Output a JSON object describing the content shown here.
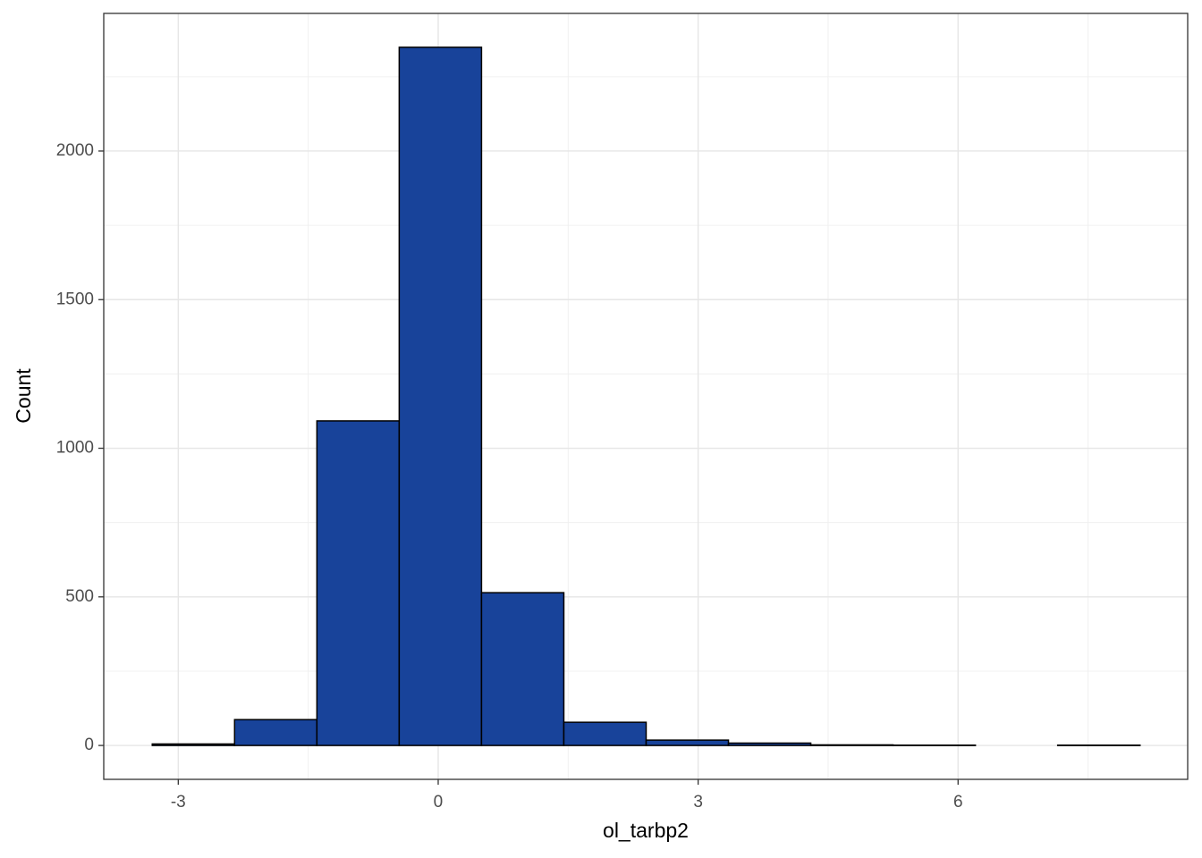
{
  "chart_data": {
    "type": "histogram",
    "x_label": "ol_tarbp2",
    "y_label": "Count",
    "bins": [
      -3.3,
      -2.35,
      -1.4,
      -0.45,
      0.5,
      1.45,
      2.4,
      3.35,
      4.3,
      5.25,
      6.2,
      7.15,
      8.1
    ],
    "values": [
      5,
      87,
      1092,
      2349,
      514,
      78,
      18,
      8,
      2,
      1,
      0,
      1
    ],
    "color": "#18439a",
    "xlim": [
      -3.86,
      8.65
    ],
    "xticks": [
      -3,
      0,
      3,
      6
    ],
    "xminorticks": [
      -1.5,
      1.5,
      4.5,
      7.5
    ],
    "ylim": [
      -114,
      2463
    ],
    "yticks": [
      0,
      500,
      1000,
      1500,
      2000
    ],
    "yminorticks": [
      250,
      750,
      1250,
      1750,
      2250
    ],
    "grid": true
  }
}
